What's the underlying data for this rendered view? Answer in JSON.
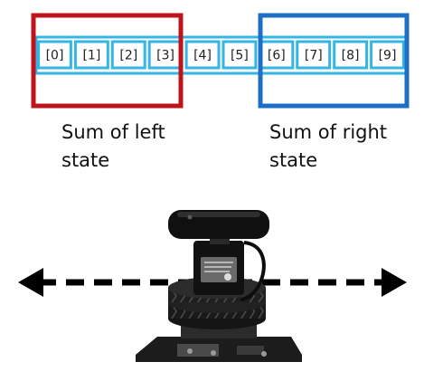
{
  "array": {
    "cells": [
      "[0]",
      "[1]",
      "[2]",
      "[3]",
      "[4]",
      "[5]",
      "[6]",
      "[7]",
      "[8]",
      "[9]"
    ],
    "cell_border_color": "#33b5e5",
    "text_color": "#222222"
  },
  "regions": {
    "left": {
      "line1": "Sum of left",
      "line2": "state",
      "color": "#c0141c"
    },
    "right": {
      "line1": "Sum of right",
      "line2": "state",
      "color": "#1c6fc4"
    }
  },
  "motion": {
    "arrow_icon": "double-headed-dashed-arrow",
    "color": "#000000"
  },
  "device": {
    "icon": "webcam-on-rotating-pan-mount"
  }
}
